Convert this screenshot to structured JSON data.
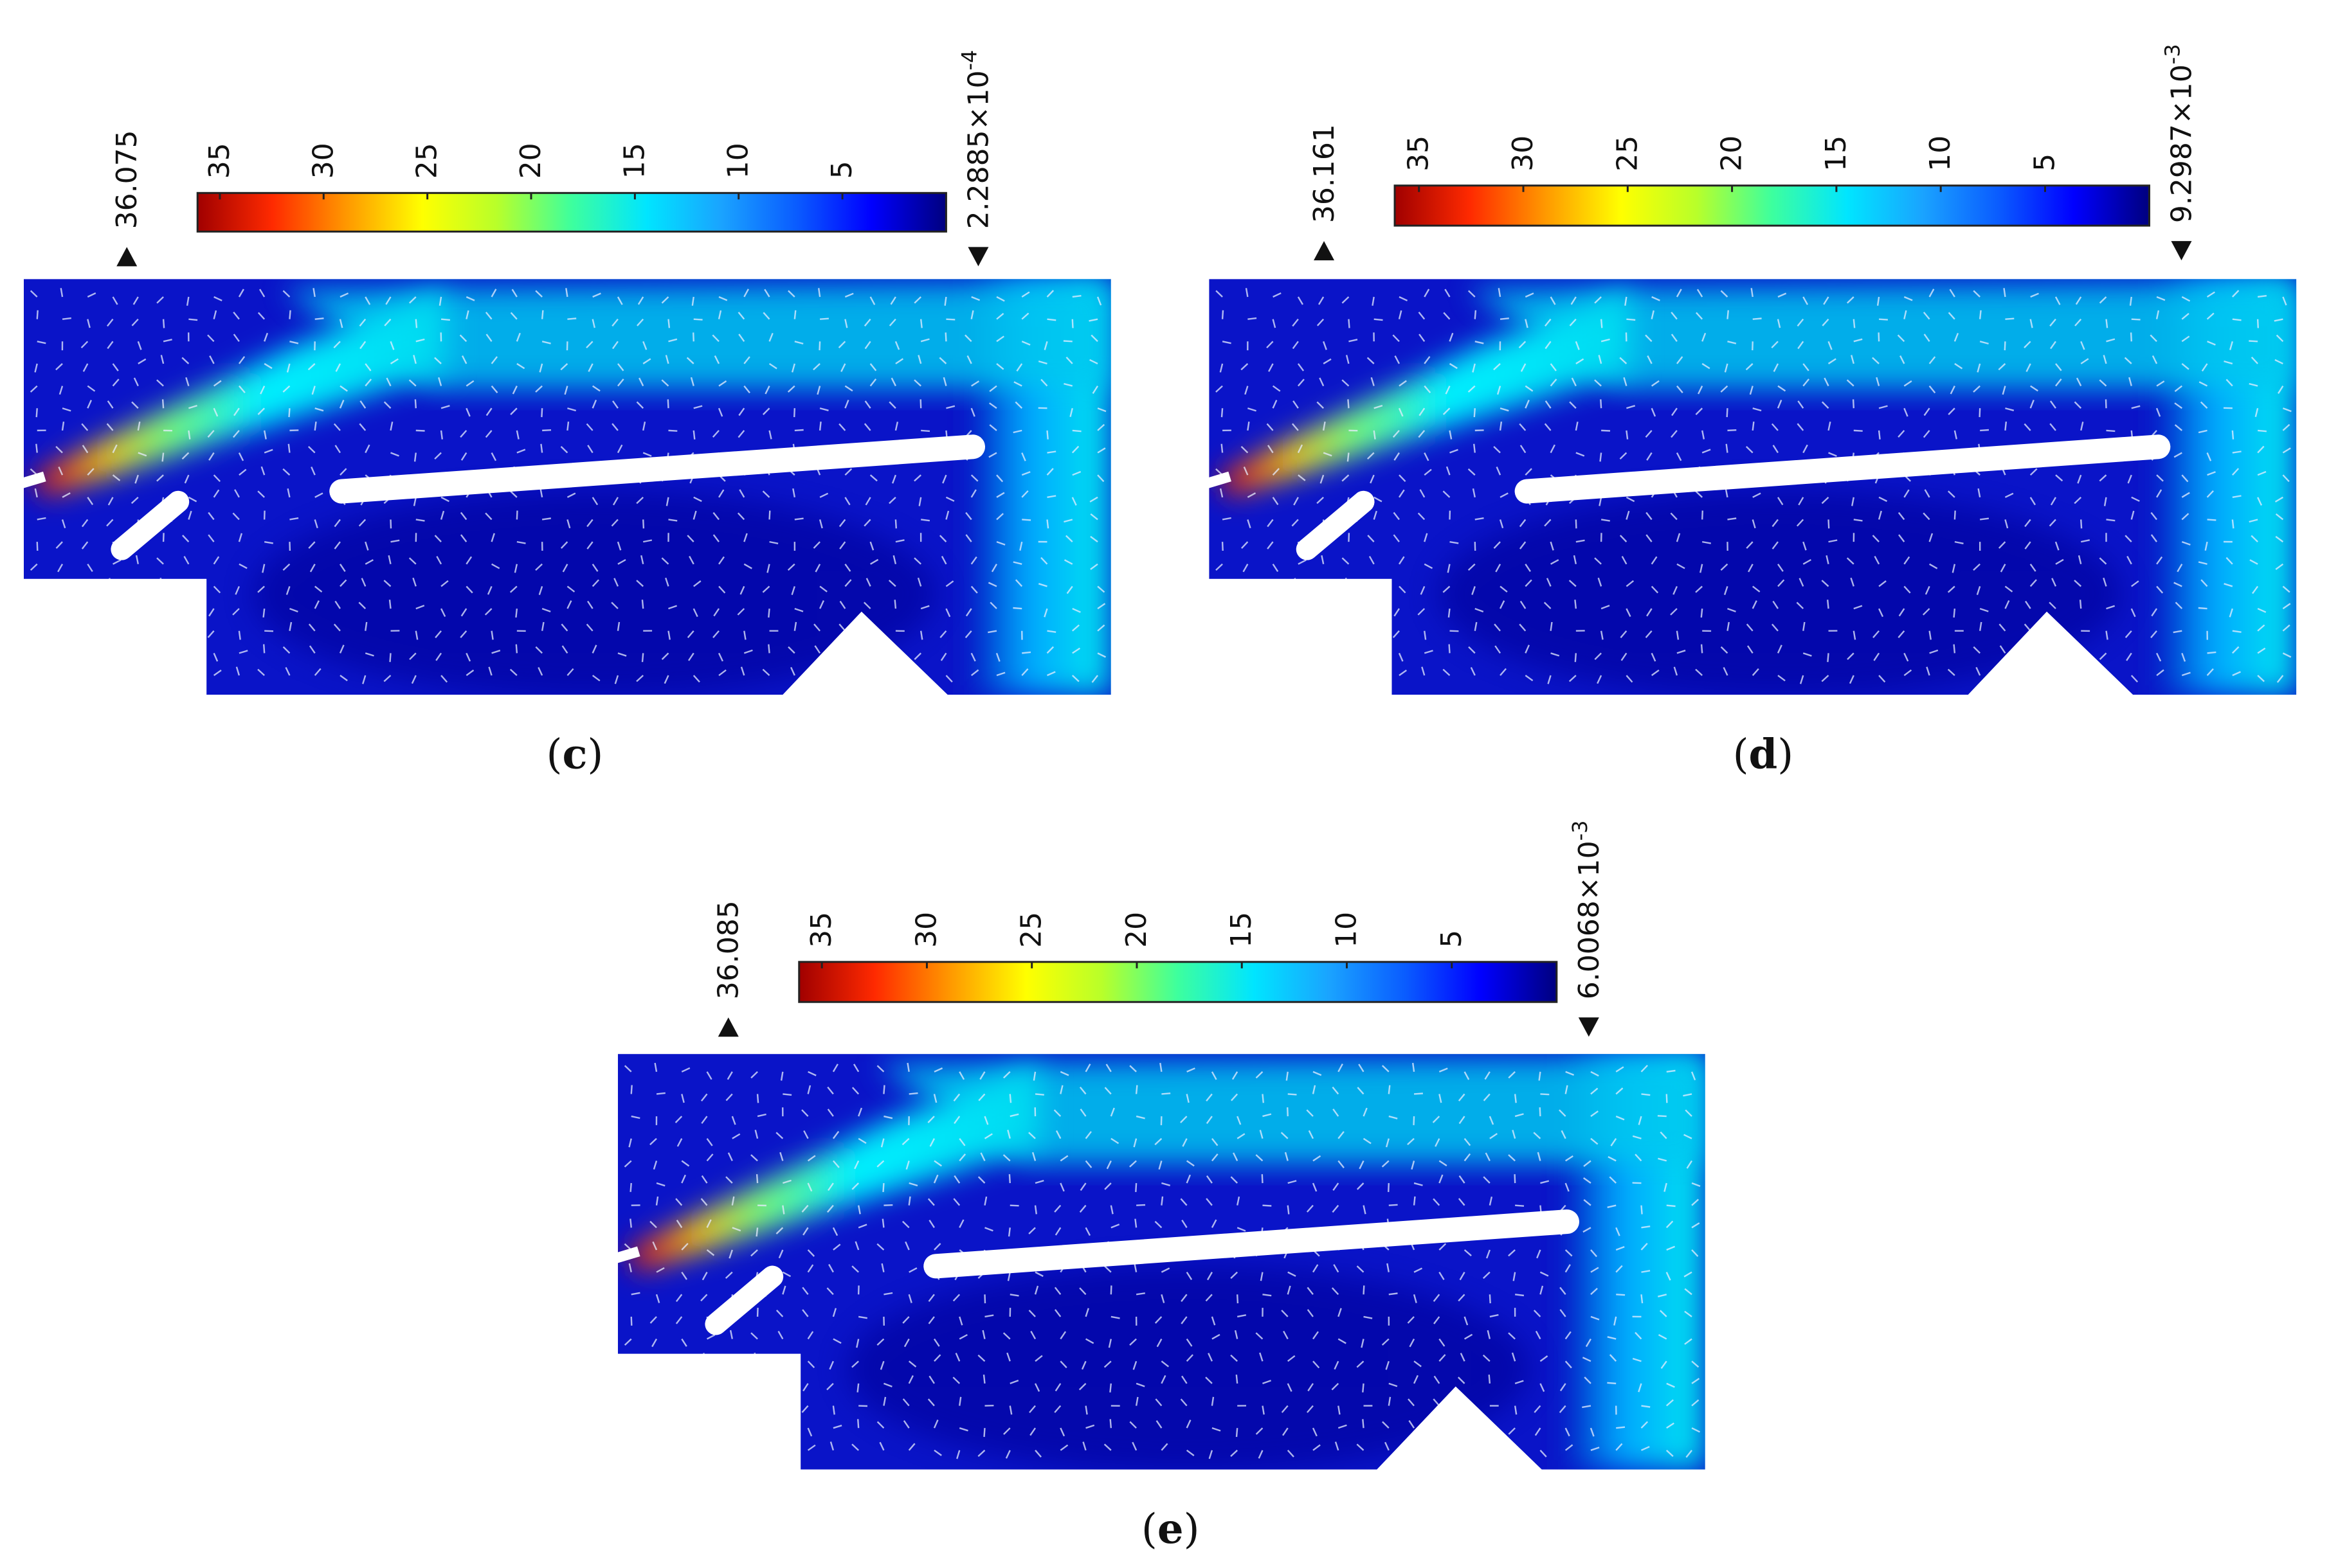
{
  "colormap": [
    "#00007f",
    "#0000ff",
    "#0a5cff",
    "#1aa3ff",
    "#00e5ff",
    "#3dff9e",
    "#b8ff2a",
    "#ffff00",
    "#ff9900",
    "#ff2a00",
    "#a00000"
  ],
  "panels": [
    {
      "id": "c",
      "caption_open": "(",
      "caption_letter": "c",
      "caption_close": ")",
      "max_label": "36.075",
      "min_mantissa": "2.2885×10",
      "min_exponent": "-4",
      "ticks": [
        "35",
        "30",
        "25",
        "20",
        "15",
        "10",
        "5"
      ],
      "tick_values": [
        35,
        30,
        25,
        20,
        15,
        10,
        5
      ],
      "range": [
        0.00022885,
        36.075
      ]
    },
    {
      "id": "d",
      "caption_open": "(",
      "caption_letter": "d",
      "caption_close": ")",
      "max_label": "36.161",
      "min_mantissa": "9.2987×10",
      "min_exponent": "-3",
      "ticks": [
        "35",
        "30",
        "25",
        "20",
        "15",
        "10",
        "5"
      ],
      "tick_values": [
        35,
        30,
        25,
        20,
        15,
        10,
        5
      ],
      "range": [
        0.0092987,
        36.161
      ]
    },
    {
      "id": "e",
      "caption_open": "(",
      "caption_letter": "e",
      "caption_close": ")",
      "max_label": "36.085",
      "min_mantissa": "6.0068×10",
      "min_exponent": "-3",
      "ticks": [
        "35",
        "30",
        "25",
        "20",
        "15",
        "10",
        "5"
      ],
      "tick_values": [
        35,
        30,
        25,
        20,
        15,
        10,
        5
      ],
      "range": [
        0.0060068,
        36.085
      ]
    }
  ]
}
